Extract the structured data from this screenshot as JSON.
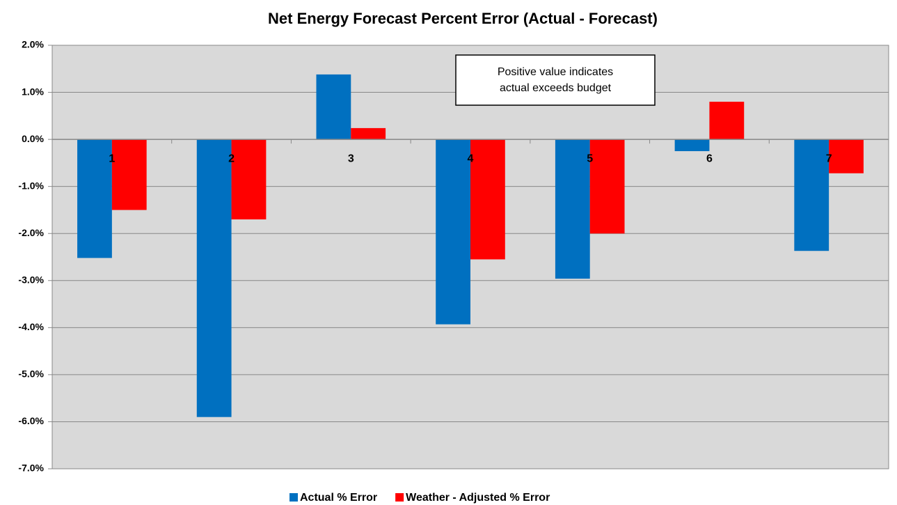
{
  "chart_data": {
    "type": "bar",
    "title": "Net Energy Forecast Percent Error (Actual - Forecast)",
    "categories": [
      "1",
      "2",
      "3",
      "4",
      "5",
      "6",
      "7"
    ],
    "series": [
      {
        "name": "Actual % Error",
        "color": "#0070c0",
        "values": [
          -2.52,
          -5.9,
          1.38,
          -3.93,
          -2.96,
          -0.25,
          -2.37
        ]
      },
      {
        "name": "Weather - Adjusted % Error",
        "color": "#ff0000",
        "values": [
          -1.5,
          -1.7,
          0.24,
          -2.55,
          -2.0,
          0.8,
          -0.72
        ]
      }
    ],
    "ylim": [
      -7,
      2
    ],
    "yticks": [
      {
        "value": 2,
        "label": "2.0%"
      },
      {
        "value": 1,
        "label": "1.0%"
      },
      {
        "value": 0,
        "label": "0.0%"
      },
      {
        "value": -1,
        "label": "-1.0%"
      },
      {
        "value": -2,
        "label": "-2.0%"
      },
      {
        "value": -3,
        "label": "-3.0%"
      },
      {
        "value": -4,
        "label": "-4.0%"
      },
      {
        "value": -5,
        "label": "-5.0%"
      },
      {
        "value": -6,
        "label": "-6.0%"
      },
      {
        "value": -7,
        "label": "-7.0%"
      }
    ],
    "grid": true,
    "legend": "bottom",
    "annotation": [
      "Positive value indicates",
      "actual exceeds budget"
    ]
  }
}
